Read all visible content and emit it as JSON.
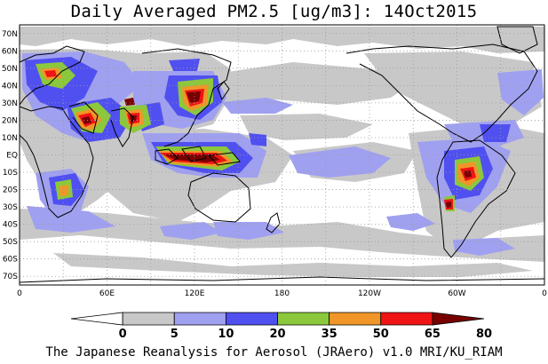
{
  "title": "Daily Averaged PM2.5 [ug/m3]: 14Oct2015",
  "footer": "The Japanese Reanalysis for Aerosol (JRAero) v1.0 MRI/KU_RIAM",
  "map": {
    "lon_range": [
      0,
      360
    ],
    "lat_range": [
      -75,
      75
    ],
    "grid": true,
    "lat_labels": [
      "70N",
      "60N",
      "50N",
      "40N",
      "30N",
      "20N",
      "10N",
      "EQ",
      "10S",
      "20S",
      "30S",
      "40S",
      "50S",
      "60S",
      "70S"
    ],
    "lon_labels": [
      "0",
      "60E",
      "120E",
      "180",
      "120W",
      "60W",
      "0"
    ]
  },
  "colorbar": {
    "labels": [
      "0",
      "5",
      "10",
      "20",
      "35",
      "50",
      "65",
      "80"
    ],
    "colors": [
      "#ffffff",
      "#c8c8c8",
      "#a0a0f0",
      "#5050f0",
      "#8cc83c",
      "#f09628",
      "#f01414",
      "#780000"
    ]
  },
  "colors": {
    "level_5": "#c8c8c8",
    "level_10": "#a0a0f0",
    "level_20": "#5050f0",
    "level_35": "#8cc83c",
    "level_50": "#f09628",
    "level_65": "#f01414",
    "level_80": "#780000",
    "coast": "#000000",
    "grid": "#9a9a9a"
  }
}
